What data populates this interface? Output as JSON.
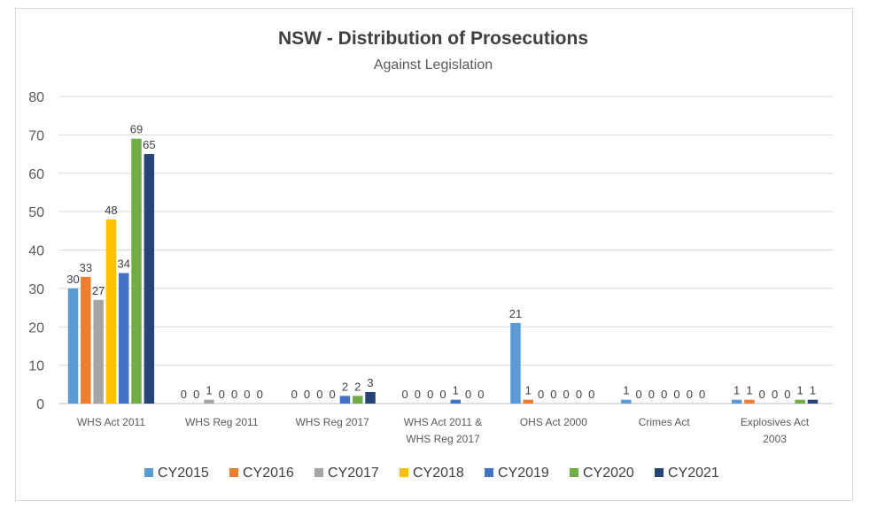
{
  "chart_data": {
    "type": "bar",
    "title": "NSW - Distribution of Prosecutions",
    "subtitle": "Against Legislation",
    "xlabel": "",
    "ylabel": "",
    "ylim": [
      0,
      80
    ],
    "yticks": [
      0,
      10,
      20,
      30,
      40,
      50,
      60,
      70,
      80
    ],
    "grid": true,
    "legend_position": "bottom",
    "categories": [
      [
        "WHS Act 2011"
      ],
      [
        "WHS Reg 2011"
      ],
      [
        "WHS Reg 2017"
      ],
      [
        "WHS Act 2011 &",
        "WHS Reg 2017"
      ],
      [
        "OHS Act 2000"
      ],
      [
        "Crimes Act"
      ],
      [
        "Explosives Act",
        "2003"
      ]
    ],
    "series": [
      {
        "name": "CY2015",
        "color": "#5b9bd5",
        "values": [
          30,
          0,
          0,
          0,
          21,
          1,
          1
        ]
      },
      {
        "name": "CY2016",
        "color": "#ed7d31",
        "values": [
          33,
          0,
          0,
          0,
          1,
          0,
          1
        ]
      },
      {
        "name": "CY2017",
        "color": "#a5a5a5",
        "values": [
          27,
          1,
          0,
          0,
          0,
          0,
          0
        ]
      },
      {
        "name": "CY2018",
        "color": "#ffc000",
        "values": [
          48,
          0,
          0,
          0,
          0,
          0,
          0
        ]
      },
      {
        "name": "CY2019",
        "color": "#4472c4",
        "values": [
          34,
          0,
          2,
          1,
          0,
          0,
          0
        ]
      },
      {
        "name": "CY2020",
        "color": "#70ad47",
        "values": [
          69,
          0,
          2,
          0,
          0,
          0,
          1
        ]
      },
      {
        "name": "CY2021",
        "color": "#264478",
        "values": [
          65,
          0,
          3,
          0,
          0,
          0,
          1
        ]
      }
    ]
  }
}
